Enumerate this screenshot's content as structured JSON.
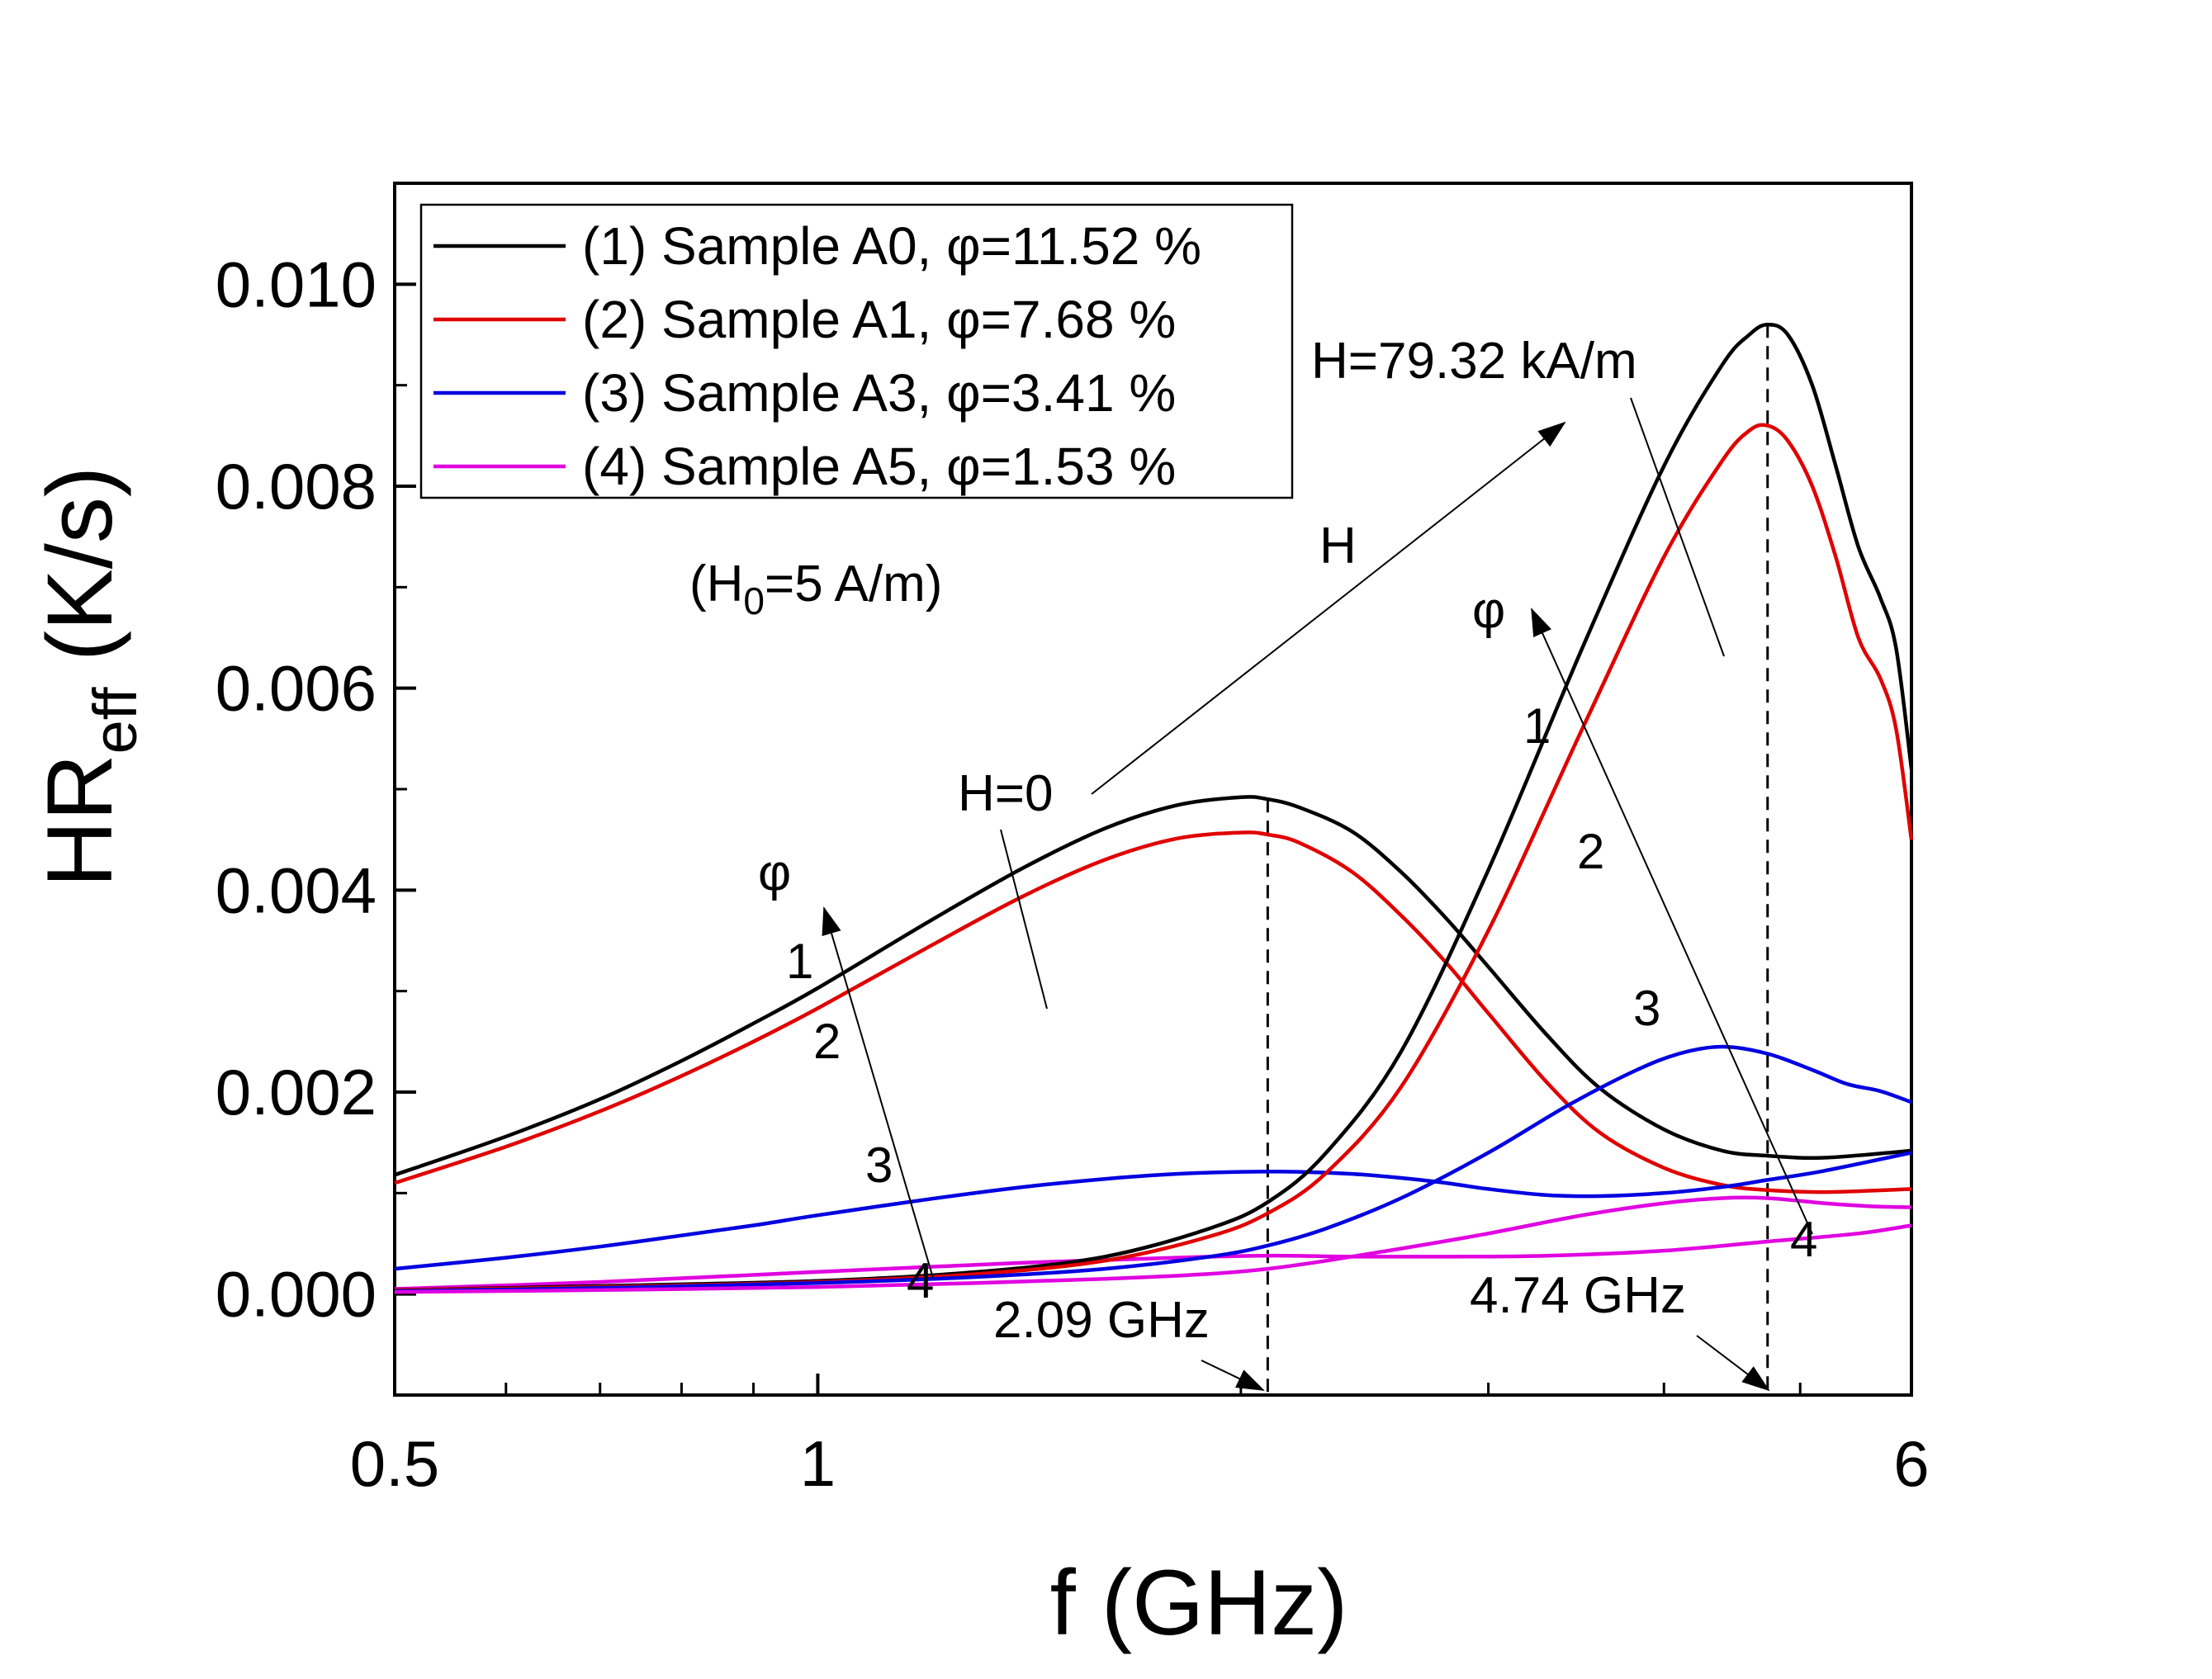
{
  "chart_data": {
    "type": "line",
    "xscale": "log",
    "xlabel": "f (GHz)",
    "ylabel_main": "HR",
    "ylabel_sub": "eff",
    "ylabel_unit": " (K/s)",
    "xlim": [
      0.5,
      6
    ],
    "ylim": [
      -0.001,
      0.011
    ],
    "x_ticks": [
      0.5,
      1,
      6
    ],
    "x_tick_labels": [
      "0.5",
      "1",
      "6"
    ],
    "y_ticks": [
      0.0,
      0.002,
      0.004,
      0.006,
      0.008,
      0.01
    ],
    "y_tick_labels": [
      "0.000",
      "0.002",
      "0.004",
      "0.006",
      "0.008",
      "0.010"
    ],
    "legend": [
      {
        "label": "(1) Sample A0, φ=11.52 %",
        "color": "#000000"
      },
      {
        "label": "(2) Sample A1, φ=7.68 %",
        "color": "#e00000"
      },
      {
        "label": "(3) Sample A3, φ=3.41 %",
        "color": "#0000e0"
      },
      {
        "label": "(4) Sample A5, φ=1.53 %",
        "color": "#e000e0"
      }
    ],
    "series": [
      {
        "name": "(1) Sample A0, H=0",
        "color": "#000000",
        "x": [
          0.5,
          0.6,
          0.7,
          0.8,
          0.9,
          1.0,
          1.2,
          1.4,
          1.6,
          1.8,
          2.0,
          2.09,
          2.2,
          2.4,
          2.6,
          2.8,
          3.0,
          3.3,
          3.6,
          4.0,
          4.4,
          4.74,
          5.2,
          6.0
        ],
        "y": [
          0.00118,
          0.00156,
          0.00193,
          0.00231,
          0.00268,
          0.00303,
          0.00369,
          0.00422,
          0.00461,
          0.00484,
          0.00492,
          0.0049,
          0.00482,
          0.00458,
          0.00418,
          0.00372,
          0.00324,
          0.00257,
          0.00204,
          0.00163,
          0.00142,
          0.00137,
          0.00135,
          0.00142
        ]
      },
      {
        "name": "(2) Sample A1, H=0",
        "color": "#e00000",
        "x": [
          0.5,
          0.6,
          0.7,
          0.8,
          0.9,
          1.0,
          1.2,
          1.4,
          1.6,
          1.8,
          2.0,
          2.09,
          2.2,
          2.4,
          2.6,
          2.8,
          3.0,
          3.3,
          3.6,
          4.0,
          4.4,
          4.74,
          5.2,
          6.0
        ],
        "y": [
          0.0011,
          0.00146,
          0.00181,
          0.00216,
          0.0025,
          0.00283,
          0.00344,
          0.00394,
          0.0043,
          0.00451,
          0.00457,
          0.00455,
          0.00447,
          0.00418,
          0.00375,
          0.00328,
          0.00278,
          0.0021,
          0.0016,
          0.00125,
          0.00108,
          0.00103,
          0.00101,
          0.00104
        ]
      },
      {
        "name": "(3) Sample A3, H=0",
        "color": "#0000e0",
        "x": [
          0.5,
          0.6,
          0.7,
          0.8,
          0.9,
          1.0,
          1.2,
          1.4,
          1.6,
          1.8,
          2.0,
          2.2,
          2.4,
          2.6,
          2.8,
          3.0,
          3.3,
          3.6,
          4.0,
          4.4,
          4.74,
          5.2,
          6.0
        ],
        "y": [
          0.00025,
          0.00036,
          0.00047,
          0.00058,
          0.00068,
          0.00078,
          0.00094,
          0.00106,
          0.00114,
          0.00119,
          0.00121,
          0.00121,
          0.00119,
          0.00115,
          0.0011,
          0.00104,
          0.00098,
          0.00097,
          0.001,
          0.00106,
          0.00113,
          0.00122,
          0.0014
        ]
      },
      {
        "name": "(4) Sample A5, H=0",
        "color": "#e000e0",
        "x": [
          0.5,
          0.7,
          1.0,
          1.4,
          1.8,
          2.09,
          2.4,
          2.8,
          3.3,
          4.0,
          4.74,
          5.5,
          6.0
        ],
        "y": [
          5e-05,
          0.00012,
          0.00022,
          0.00031,
          0.00036,
          0.00038,
          0.00037,
          0.00037,
          0.00038,
          0.00043,
          0.00052,
          0.0006,
          0.00068
        ]
      },
      {
        "name": "(1) Sample A0, H=79.32 kA/m",
        "color": "#000000",
        "x": [
          0.5,
          0.7,
          1.0,
          1.3,
          1.6,
          1.9,
          2.09,
          2.3,
          2.6,
          3.0,
          3.5,
          4.0,
          4.4,
          4.6,
          4.74,
          4.9,
          5.1,
          5.3,
          5.5,
          5.7,
          5.85,
          6.0
        ],
        "y": [
          4e-05,
          8e-05,
          0.00013,
          0.00022,
          0.00037,
          0.00065,
          0.00091,
          0.0014,
          0.0024,
          0.0042,
          0.0064,
          0.0082,
          0.0092,
          0.0095,
          0.0096,
          0.0095,
          0.009,
          0.0082,
          0.0074,
          0.0069,
          0.0064,
          0.0052
        ]
      },
      {
        "name": "(2) Sample A1, H=79.32 kA/m",
        "color": "#e00000",
        "x": [
          0.5,
          0.7,
          1.0,
          1.3,
          1.6,
          1.9,
          2.09,
          2.3,
          2.6,
          3.0,
          3.5,
          4.0,
          4.4,
          4.6,
          4.74,
          4.9,
          5.1,
          5.3,
          5.5,
          5.7,
          5.85,
          6.0
        ],
        "y": [
          4e-05,
          7e-05,
          0.00012,
          0.0002,
          0.00033,
          0.00057,
          0.0008,
          0.0012,
          0.00205,
          0.0036,
          0.0056,
          0.0073,
          0.00825,
          0.00855,
          0.0086,
          0.00845,
          0.008,
          0.0073,
          0.0065,
          0.0061,
          0.0056,
          0.0045
        ]
      },
      {
        "name": "(3) Sample A3, H=79.32 kA/m",
        "color": "#0000e0",
        "x": [
          0.5,
          0.7,
          1.0,
          1.3,
          1.6,
          1.9,
          2.09,
          2.3,
          2.6,
          3.0,
          3.4,
          3.8,
          4.1,
          4.4,
          4.74,
          5.1,
          5.4,
          5.7,
          6.0
        ],
        "y": [
          3e-05,
          6e-05,
          0.00011,
          0.00017,
          0.00025,
          0.00037,
          0.00048,
          0.00065,
          0.00095,
          0.0014,
          0.00185,
          0.0022,
          0.00238,
          0.00245,
          0.00238,
          0.00222,
          0.00208,
          0.00201,
          0.0019
        ]
      },
      {
        "name": "(4) Sample A5, H=79.32 kA/m",
        "color": "#e000e0",
        "x": [
          0.5,
          0.7,
          1.0,
          1.3,
          1.6,
          1.9,
          2.09,
          2.3,
          2.6,
          3.0,
          3.5,
          4.0,
          4.4,
          4.74,
          5.2,
          5.6,
          6.0
        ],
        "y": [
          2e-05,
          4e-05,
          7e-05,
          0.00011,
          0.00015,
          0.0002,
          0.00025,
          0.00033,
          0.00045,
          0.0006,
          0.00078,
          0.0009,
          0.00095,
          0.00095,
          0.0009,
          0.00087,
          0.00086
        ]
      }
    ],
    "markers": [
      {
        "x": 2.09,
        "label": "2.09 GHz"
      },
      {
        "x": 4.74,
        "label": "4.74 GHz"
      }
    ],
    "annotations": {
      "h0_label_pre": "(H",
      "h0_label_sub": "0",
      "h0_label_post": "=5 A/m)",
      "h_zero": "H=0",
      "h_high": "H=79.32 kA/m",
      "h_arrow_label": "H",
      "phi": "φ",
      "curve_numbers": [
        "1",
        "2",
        "3",
        "4"
      ]
    }
  }
}
